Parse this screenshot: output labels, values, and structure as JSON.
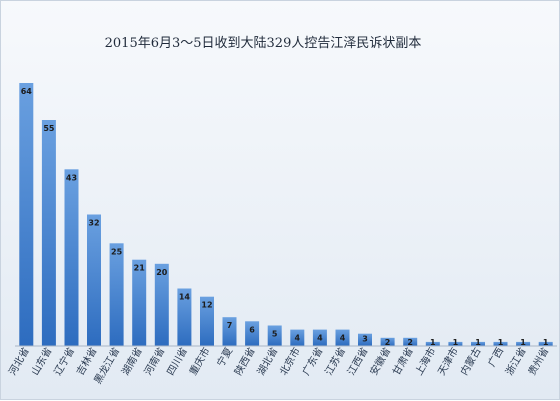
{
  "chart_data": {
    "type": "bar",
    "title": "2015年6月3～5日收到大陆329人控告江泽民诉状副本",
    "xlabel": "",
    "ylabel": "",
    "ylim": [
      0,
      70
    ],
    "grid": false,
    "legend": "none",
    "colors": {
      "bar_top": "#6aa0e0",
      "bar_bottom": "#2d6cbf",
      "background_top": "#f7f9fc",
      "background_bottom": "#e2eaf3",
      "axis": "#a9b6c6"
    },
    "categories": [
      "河北省",
      "山东省",
      "辽宁省",
      "吉林省",
      "黑龙江省",
      "湖南省",
      "河南省",
      "四川省",
      "重庆市",
      "宁夏",
      "陕西省",
      "湖北省",
      "北京市",
      "广东省",
      "江苏省",
      "江西省",
      "安徽省",
      "甘肃省",
      "上海市",
      "天津市",
      "内蒙古",
      "广西",
      "浙江省",
      "贵州省"
    ],
    "values": [
      64,
      55,
      43,
      32,
      25,
      21,
      20,
      14,
      12,
      7,
      6,
      5,
      4,
      4,
      4,
      3,
      2,
      2,
      1,
      1,
      1,
      1,
      1,
      1
    ],
    "data_labels": [
      "64",
      "55",
      "43",
      "32",
      "25",
      "21",
      "20",
      "14",
      "12",
      "7",
      "6",
      "5",
      "4",
      "4",
      "4",
      "3",
      "2",
      "2",
      "1",
      "1",
      "1",
      "1",
      "1",
      "1"
    ]
  }
}
